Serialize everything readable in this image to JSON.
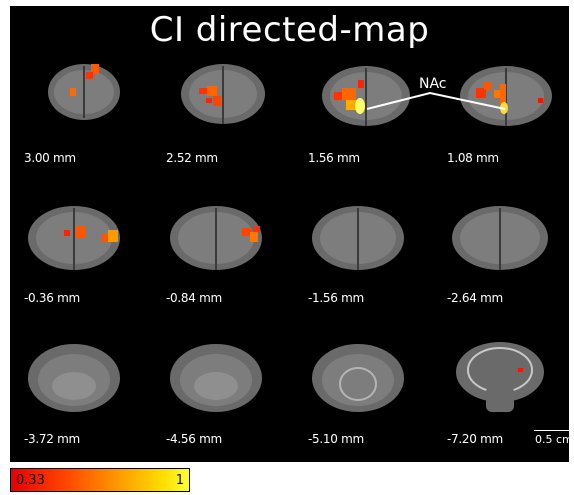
{
  "figure": {
    "title": "CI directed-map",
    "annotation": "NAc",
    "scale_bar": "0.5 cm",
    "colorbar": {
      "min_label": "0.33",
      "max_label": "1",
      "colors": [
        "#e60000",
        "#ff9900",
        "#ffff33"
      ]
    }
  },
  "slices": [
    {
      "label": "3.00 mm"
    },
    {
      "label": "2.52 mm"
    },
    {
      "label": "1.56 mm"
    },
    {
      "label": "1.08 mm"
    },
    {
      "label": "-0.36 mm"
    },
    {
      "label": "-0.84 mm"
    },
    {
      "label": "-1.56 mm"
    },
    {
      "label": "-2.64 mm"
    },
    {
      "label": "-3.72 mm"
    },
    {
      "label": "-4.56 mm"
    },
    {
      "label": "-5.10 mm"
    },
    {
      "label": "-7.20 mm"
    }
  ]
}
